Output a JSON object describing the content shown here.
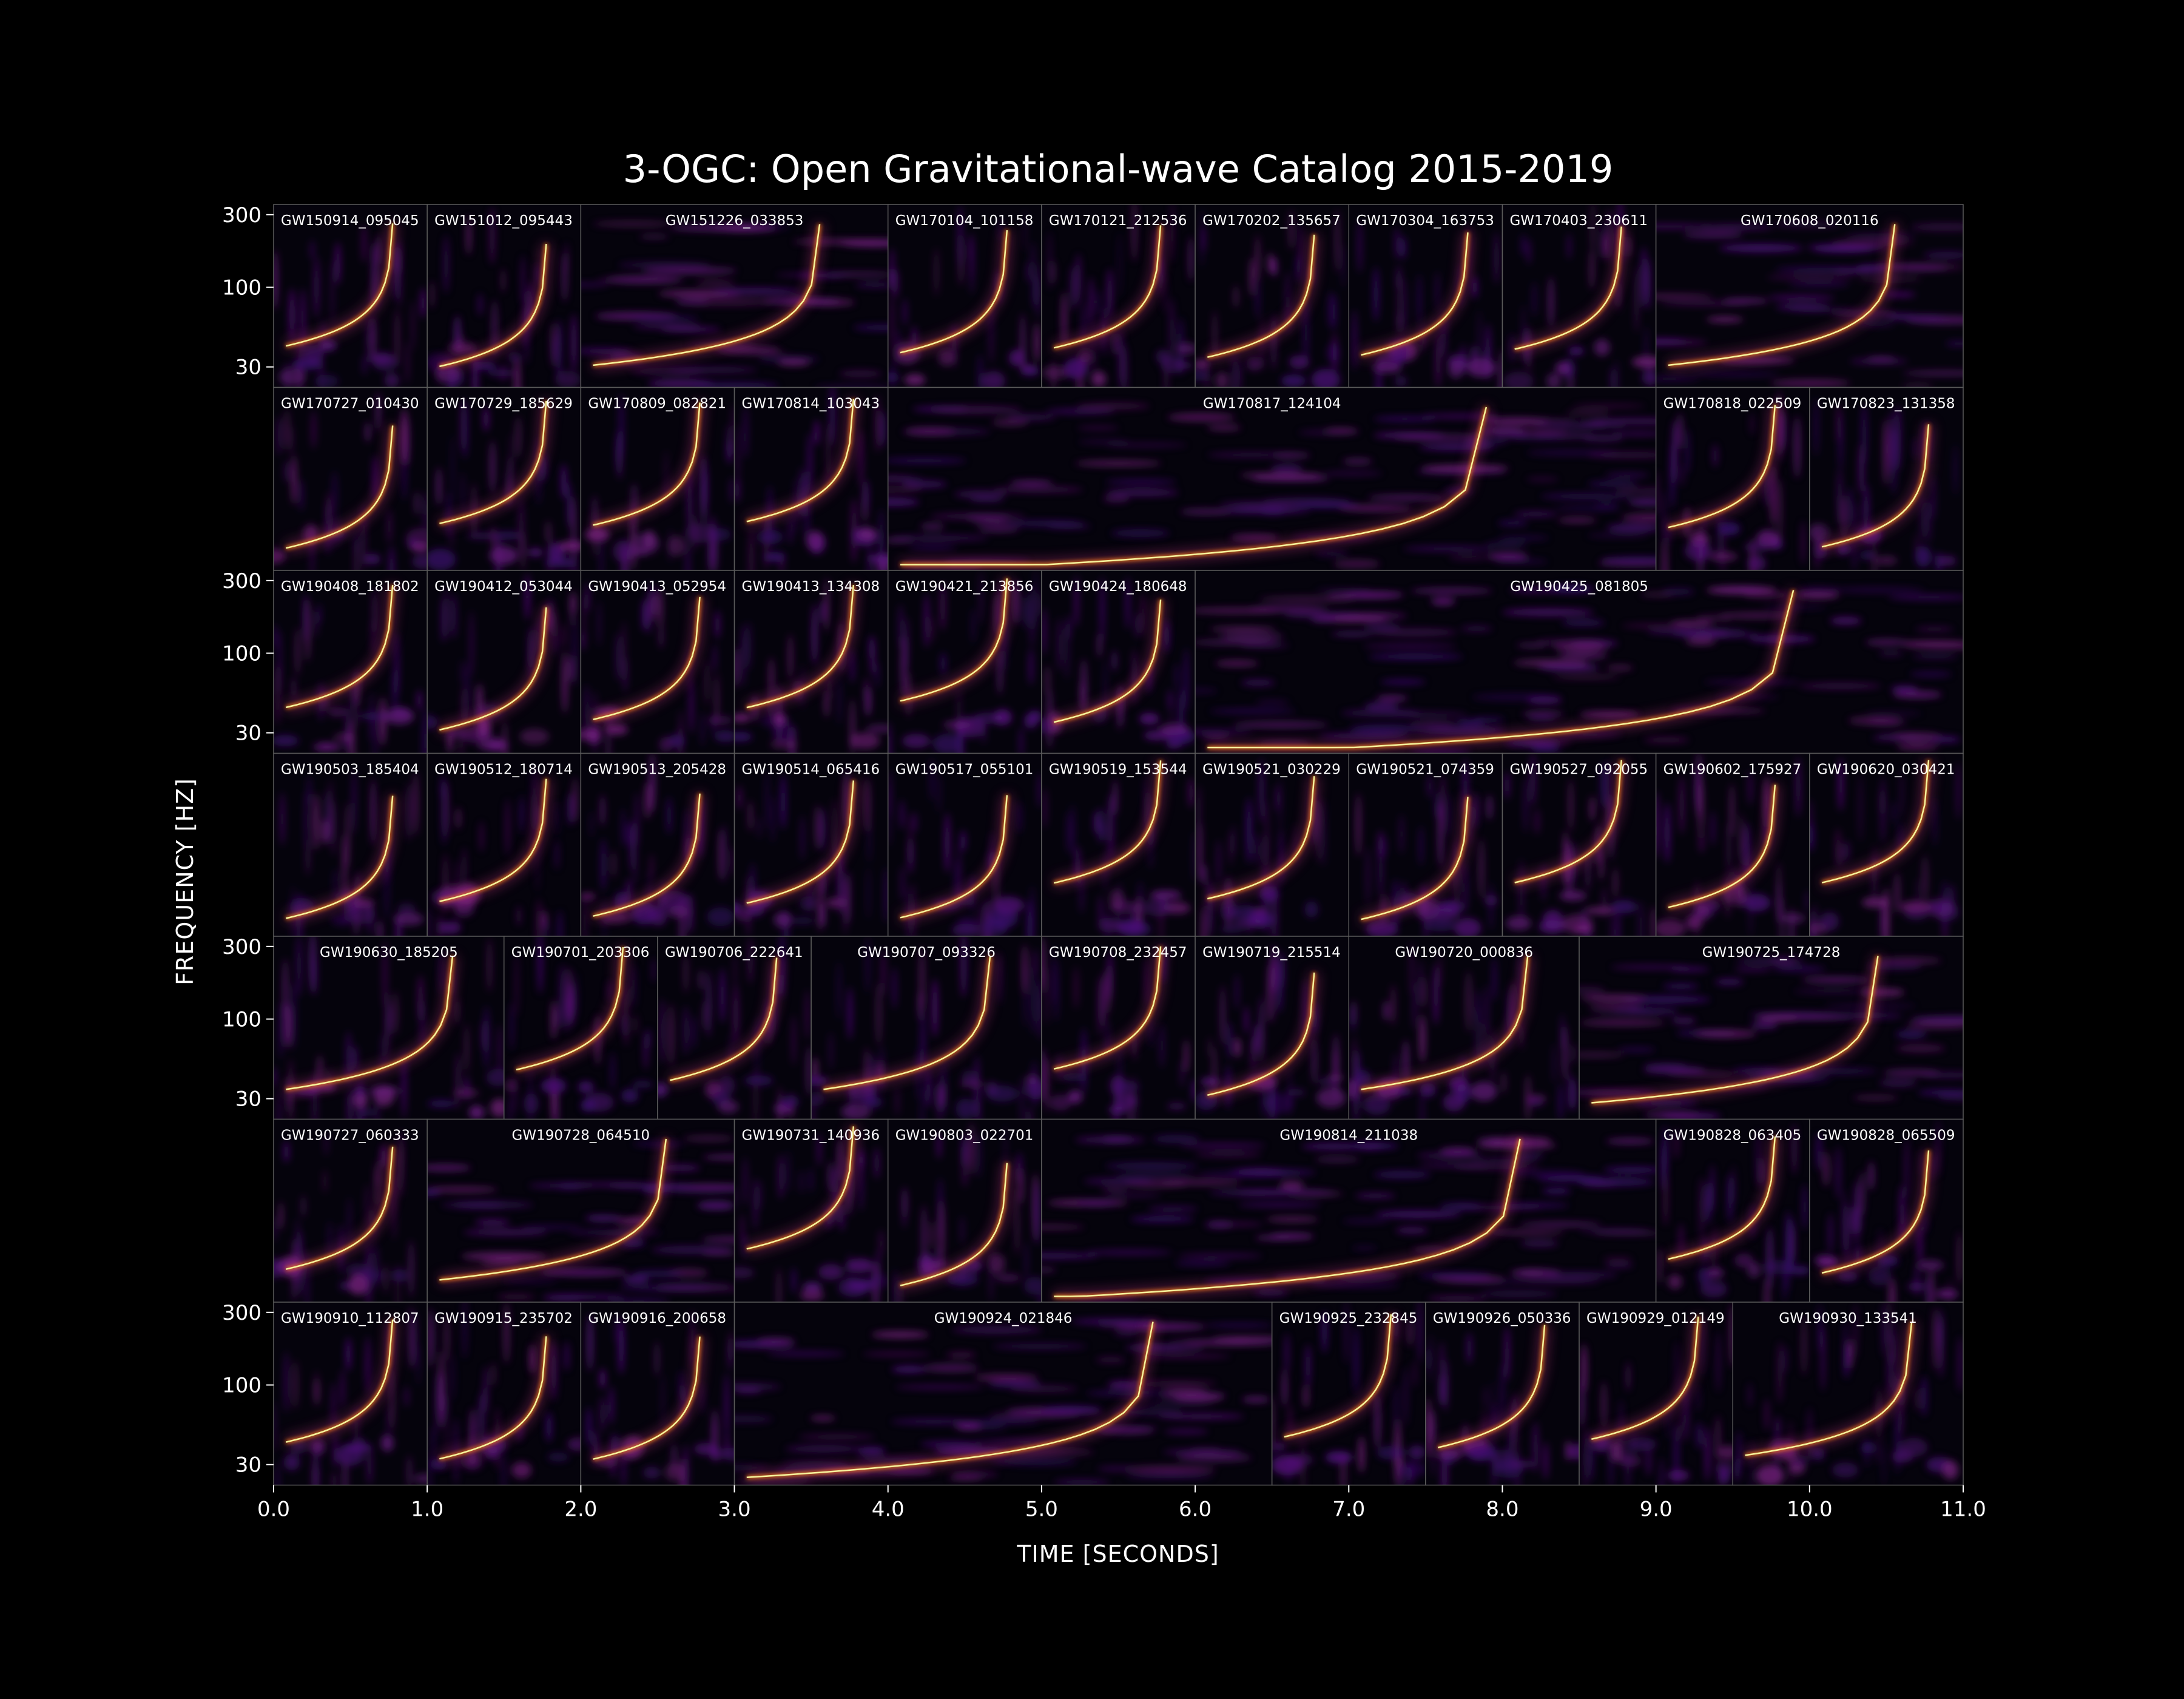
{
  "chart_data": {
    "type": "heatmap",
    "title": "3-OGC: Open Gravitational-wave Catalog 2015-2019",
    "xlabel": "TIME [SECONDS]",
    "ylabel": "FREQUENCY [HZ]",
    "xlim": [
      0,
      11
    ],
    "x_ticks": [
      "0.0",
      "1.0",
      "2.0",
      "3.0",
      "4.0",
      "5.0",
      "6.0",
      "7.0",
      "8.0",
      "9.0",
      "10.0",
      "11.0"
    ],
    "y_scale": "log",
    "y_ticks": [
      "30",
      "100",
      "300"
    ],
    "y_tick_values": [
      30,
      100,
      300
    ],
    "ylim": [
      22,
      350
    ],
    "colormap": "inferno",
    "colors": {
      "background": "#000000",
      "text": "#ffffff",
      "panel_border": "#5a5a5a"
    },
    "rows": [
      {
        "y_tick_labels": true,
        "panels": [
          {
            "label": "GW150914_095045",
            "duration": 1.0
          },
          {
            "label": "GW151012_095443",
            "duration": 1.0
          },
          {
            "label": "GW151226_033853",
            "duration": 2.0
          },
          {
            "label": "GW170104_101158",
            "duration": 1.0
          },
          {
            "label": "GW170121_212536",
            "duration": 1.0
          },
          {
            "label": "GW170202_135657",
            "duration": 1.0
          },
          {
            "label": "GW170304_163753",
            "duration": 1.0
          },
          {
            "label": "GW170403_230611",
            "duration": 1.0
          },
          {
            "label": "GW170608_020116",
            "duration": 2.0
          }
        ]
      },
      {
        "y_tick_labels": false,
        "panels": [
          {
            "label": "GW170727_010430",
            "duration": 1.0
          },
          {
            "label": "GW170729_185629",
            "duration": 1.0
          },
          {
            "label": "GW170809_082821",
            "duration": 1.0
          },
          {
            "label": "GW170814_103043",
            "duration": 1.0
          },
          {
            "label": "GW170817_124104",
            "duration": 5.0
          },
          {
            "label": "GW170818_022509",
            "duration": 1.0
          },
          {
            "label": "GW170823_131358",
            "duration": 1.0
          }
        ]
      },
      {
        "y_tick_labels": true,
        "panels": [
          {
            "label": "GW190408_181802",
            "duration": 1.0
          },
          {
            "label": "GW190412_053044",
            "duration": 1.0
          },
          {
            "label": "GW190413_052954",
            "duration": 1.0
          },
          {
            "label": "GW190413_134308",
            "duration": 1.0
          },
          {
            "label": "GW190421_213856",
            "duration": 1.0
          },
          {
            "label": "GW190424_180648",
            "duration": 1.0
          },
          {
            "label": "GW190425_081805",
            "duration": 5.0
          }
        ]
      },
      {
        "y_tick_labels": false,
        "panels": [
          {
            "label": "GW190503_185404",
            "duration": 1.0
          },
          {
            "label": "GW190512_180714",
            "duration": 1.0
          },
          {
            "label": "GW190513_205428",
            "duration": 1.0
          },
          {
            "label": "GW190514_065416",
            "duration": 1.0
          },
          {
            "label": "GW190517_055101",
            "duration": 1.0
          },
          {
            "label": "GW190519_153544",
            "duration": 1.0
          },
          {
            "label": "GW190521_030229",
            "duration": 1.0
          },
          {
            "label": "GW190521_074359",
            "duration": 1.0
          },
          {
            "label": "GW190527_092055",
            "duration": 1.0
          },
          {
            "label": "GW190602_175927",
            "duration": 1.0
          },
          {
            "label": "GW190620_030421",
            "duration": 1.0
          }
        ]
      },
      {
        "y_tick_labels": true,
        "panels": [
          {
            "label": "GW190630_185205",
            "duration": 1.5
          },
          {
            "label": "GW190701_203306",
            "duration": 1.0
          },
          {
            "label": "GW190706_222641",
            "duration": 1.0
          },
          {
            "label": "GW190707_093326",
            "duration": 1.5
          },
          {
            "label": "GW190708_232457",
            "duration": 1.0
          },
          {
            "label": "GW190719_215514",
            "duration": 1.0
          },
          {
            "label": "GW190720_000836",
            "duration": 1.5
          },
          {
            "label": "GW190725_174728",
            "duration": 2.5
          }
        ]
      },
      {
        "y_tick_labels": false,
        "panels": [
          {
            "label": "GW190727_060333",
            "duration": 1.0
          },
          {
            "label": "GW190728_064510",
            "duration": 2.0
          },
          {
            "label": "GW190731_140936",
            "duration": 1.0
          },
          {
            "label": "GW190803_022701",
            "duration": 1.0
          },
          {
            "label": "GW190814_211038",
            "duration": 4.0
          },
          {
            "label": "GW190828_063405",
            "duration": 1.0
          },
          {
            "label": "GW190828_065509",
            "duration": 1.0
          }
        ]
      },
      {
        "y_tick_labels": true,
        "panels": [
          {
            "label": "GW190910_112807",
            "duration": 1.0
          },
          {
            "label": "GW190915_235702",
            "duration": 1.0
          },
          {
            "label": "GW190916_200658",
            "duration": 1.0
          },
          {
            "label": "GW190924_021846",
            "duration": 3.5
          },
          {
            "label": "GW190925_232845",
            "duration": 1.0
          },
          {
            "label": "GW190926_050336",
            "duration": 1.0
          },
          {
            "label": "GW190929_012149",
            "duration": 1.0
          },
          {
            "label": "GW190930_133541",
            "duration": 1.5
          }
        ]
      }
    ]
  }
}
